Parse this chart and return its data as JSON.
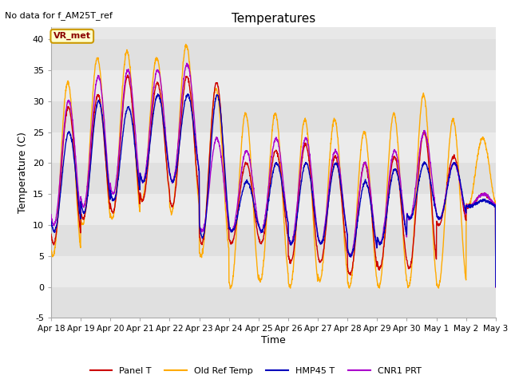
{
  "title": "Temperatures",
  "xlabel": "Time",
  "ylabel": "Temperature (C)",
  "ylim": [
    -5,
    42
  ],
  "xlim_start": 0,
  "xlim_end": 15,
  "no_data_text": "No data for f_AM25T_ref",
  "vr_met_label": "VR_met",
  "fig_facecolor": "#ffffff",
  "plot_bg_color": "#e8e8e8",
  "band_colors": [
    "#e0e0e0",
    "#ebebeb"
  ],
  "series": {
    "panel_t": {
      "label": "Panel T",
      "color": "#cc0000",
      "lw": 1.0
    },
    "old_ref": {
      "label": "Old Ref Temp",
      "color": "#ffaa00",
      "lw": 1.0
    },
    "hmp45": {
      "label": "HMP45 T",
      "color": "#0000bb",
      "lw": 1.0
    },
    "cnr1": {
      "label": "CNR1 PRT",
      "color": "#aa00cc",
      "lw": 1.0
    }
  },
  "xtick_labels": [
    "Apr 18",
    "Apr 19",
    "Apr 20",
    "Apr 21",
    "Apr 22",
    "Apr 23",
    "Apr 24",
    "Apr 25",
    "Apr 26",
    "Apr 27",
    "Apr 28",
    "Apr 29",
    "Apr 30",
    "May 1",
    "May 2",
    "May 3"
  ],
  "xtick_positions": [
    0,
    1,
    2,
    3,
    4,
    5,
    6,
    7,
    8,
    9,
    10,
    11,
    12,
    13,
    14,
    15
  ],
  "ytick_vals": [
    -5,
    0,
    5,
    10,
    15,
    20,
    25,
    30,
    35,
    40
  ]
}
